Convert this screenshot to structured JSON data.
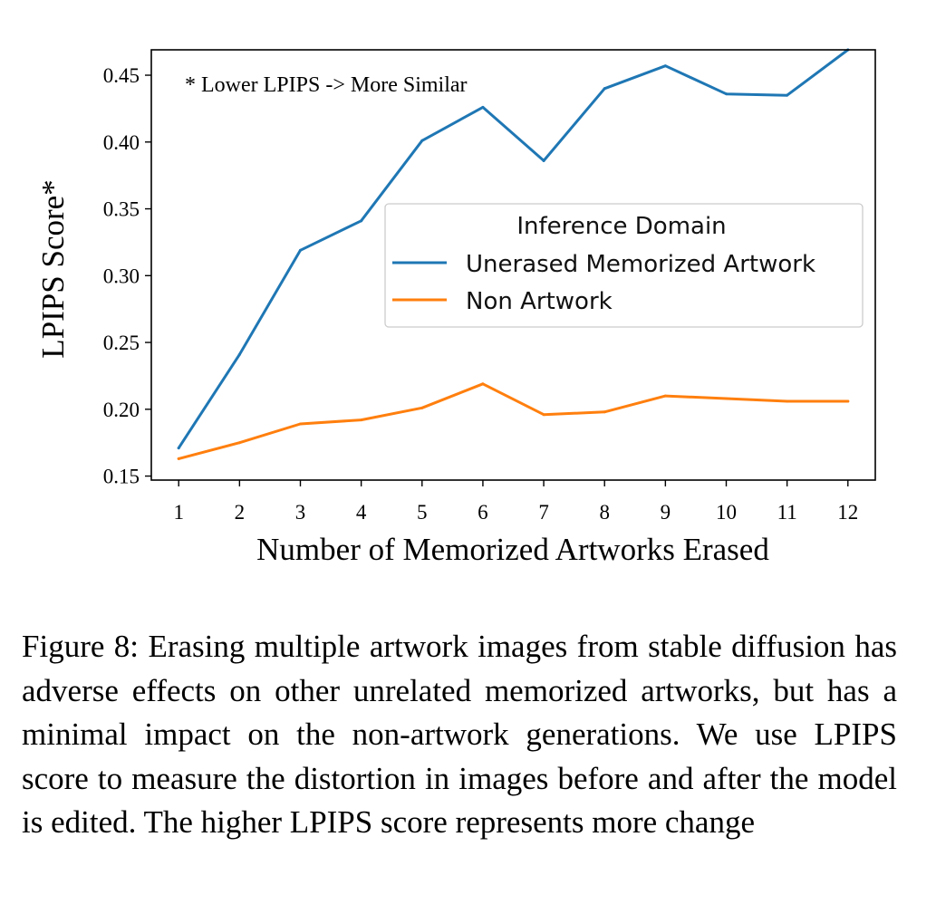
{
  "chart_data": {
    "type": "line",
    "xlabel": "Number of Memorized Artworks Erased",
    "ylabel": "LPIPS Score*",
    "annotation": "* Lower LPIPS -> More Similar",
    "x": [
      1,
      2,
      3,
      4,
      5,
      6,
      7,
      8,
      9,
      10,
      11,
      12
    ],
    "xlim": [
      0.55,
      12.45
    ],
    "ylim": [
      0.147,
      0.469
    ],
    "yticks": [
      "0.15",
      "0.20",
      "0.25",
      "0.30",
      "0.35",
      "0.40",
      "0.45"
    ],
    "xticks": [
      "1",
      "2",
      "3",
      "4",
      "5",
      "6",
      "7",
      "8",
      "9",
      "10",
      "11",
      "12"
    ],
    "grid": false,
    "legend": {
      "title": "Inference Domain",
      "placement": "center-right"
    },
    "series": [
      {
        "name": "Unerased Memorized Artwork",
        "color": "#1f77b4",
        "values": [
          0.171,
          0.241,
          0.319,
          0.341,
          0.401,
          0.426,
          0.386,
          0.44,
          0.457,
          0.436,
          0.435,
          0.469
        ]
      },
      {
        "name": "Non Artwork",
        "color": "#ff7f0e",
        "values": [
          0.163,
          0.175,
          0.189,
          0.192,
          0.201,
          0.219,
          0.196,
          0.198,
          0.21,
          0.208,
          0.206,
          0.206
        ]
      }
    ]
  },
  "caption": "Figure 8: Erasing multiple artwork images from stable diffusion has adverse effects on other unrelated memorized artworks, but has a minimal impact on the non-artwork generations. We use LPIPS score to measure the distortion in images before and after the model is edited.  The higher LPIPS score represents more change"
}
